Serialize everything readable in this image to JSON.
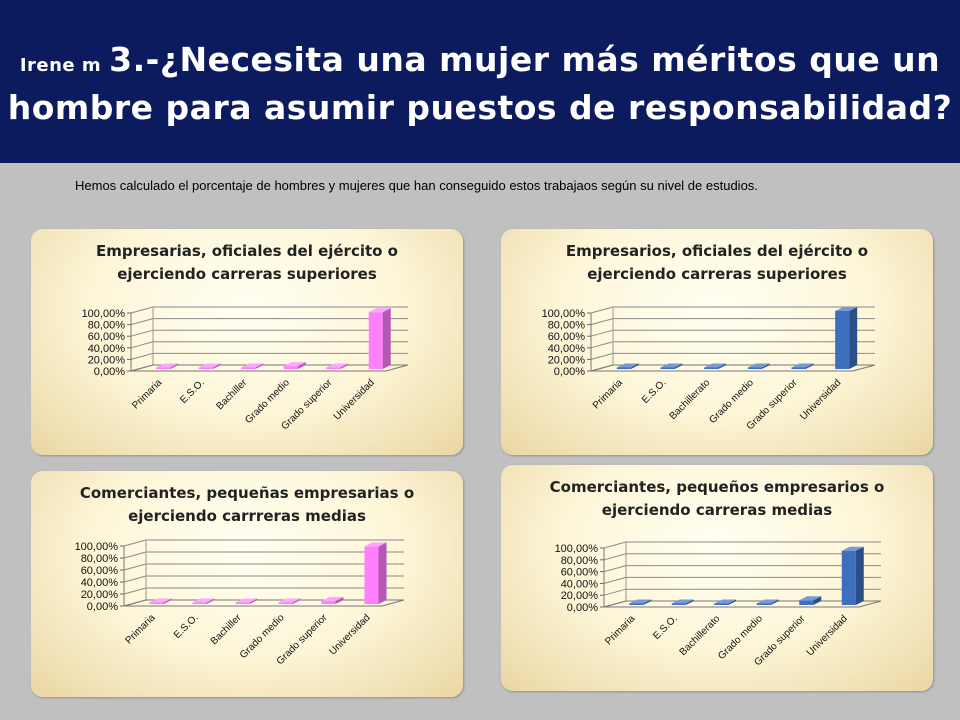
{
  "header": {
    "author": "Irene m",
    "title_line1": "3.-¿Necesita una mujer más méritos que un",
    "title_line2": "hombre para asumir puestos de responsabilidad?"
  },
  "intro": "Hemos calculado el porcentaje de hombres y mujeres que han conseguido estos trabajaos según su nivel de estudios.",
  "colors": {
    "female": "#ff7fff",
    "male": "#3e6fbf",
    "header_bg": "#0c1b5e"
  },
  "chart_data": [
    {
      "type": "bar",
      "title": [
        "Empresarias, oficiales del ejército o",
        "ejerciendo carreras superiores"
      ],
      "categories": [
        "Primaria",
        "E.S.O.",
        "Bachiller",
        "Grado medio",
        "Grado superior",
        "Universidad"
      ],
      "values": [
        2,
        1,
        1,
        5,
        1,
        98
      ],
      "yticks": [
        "0,00%",
        "20,00%",
        "40,00%",
        "60,00%",
        "80,00%",
        "100,00%"
      ],
      "ylim": [
        0,
        100
      ],
      "color": "#ff7fff"
    },
    {
      "type": "bar",
      "title": [
        "Empresarios, oficiales del ejército o",
        "ejerciendo carreras superiores"
      ],
      "categories": [
        "Primaria",
        "E.S.O.",
        "Bachillerato",
        "Grado medio",
        "Grado superior",
        "Universidad"
      ],
      "values": [
        1,
        1,
        1,
        1,
        1,
        100
      ],
      "yticks": [
        "0,00%",
        "20,00%",
        "40,00%",
        "60,00%",
        "80,00%",
        "100,00%"
      ],
      "ylim": [
        0,
        100
      ],
      "color": "#3e6fbf"
    },
    {
      "type": "bar",
      "title": [
        "Comerciantes, pequeñas empresarias o",
        "ejerciendo carrreras medias"
      ],
      "categories": [
        "Primaria",
        "E.S.O.",
        "Bachiller",
        "Grado medio",
        "Grado superior",
        "Universidad"
      ],
      "values": [
        1,
        1,
        1,
        1,
        5,
        96
      ],
      "yticks": [
        "0,00%",
        "20,00%",
        "40,00%",
        "60,00%",
        "80,00%",
        "100,00%"
      ],
      "ylim": [
        0,
        100
      ],
      "color": "#ff7fff"
    },
    {
      "type": "bar",
      "title": [
        "Comerciantes, pequeños empresarios o",
        "ejerciendo carreras medias"
      ],
      "categories": [
        "Primaria",
        "E.S.O.",
        "Bachillerato",
        "Grado medio",
        "Grado superior",
        "Universidad"
      ],
      "values": [
        1,
        1,
        1,
        1,
        8,
        92
      ],
      "yticks": [
        "0,00%",
        "20,00%",
        "40,00%",
        "60,00%",
        "80,00%",
        "100,00%"
      ],
      "ylim": [
        0,
        100
      ],
      "color": "#3e6fbf"
    }
  ]
}
